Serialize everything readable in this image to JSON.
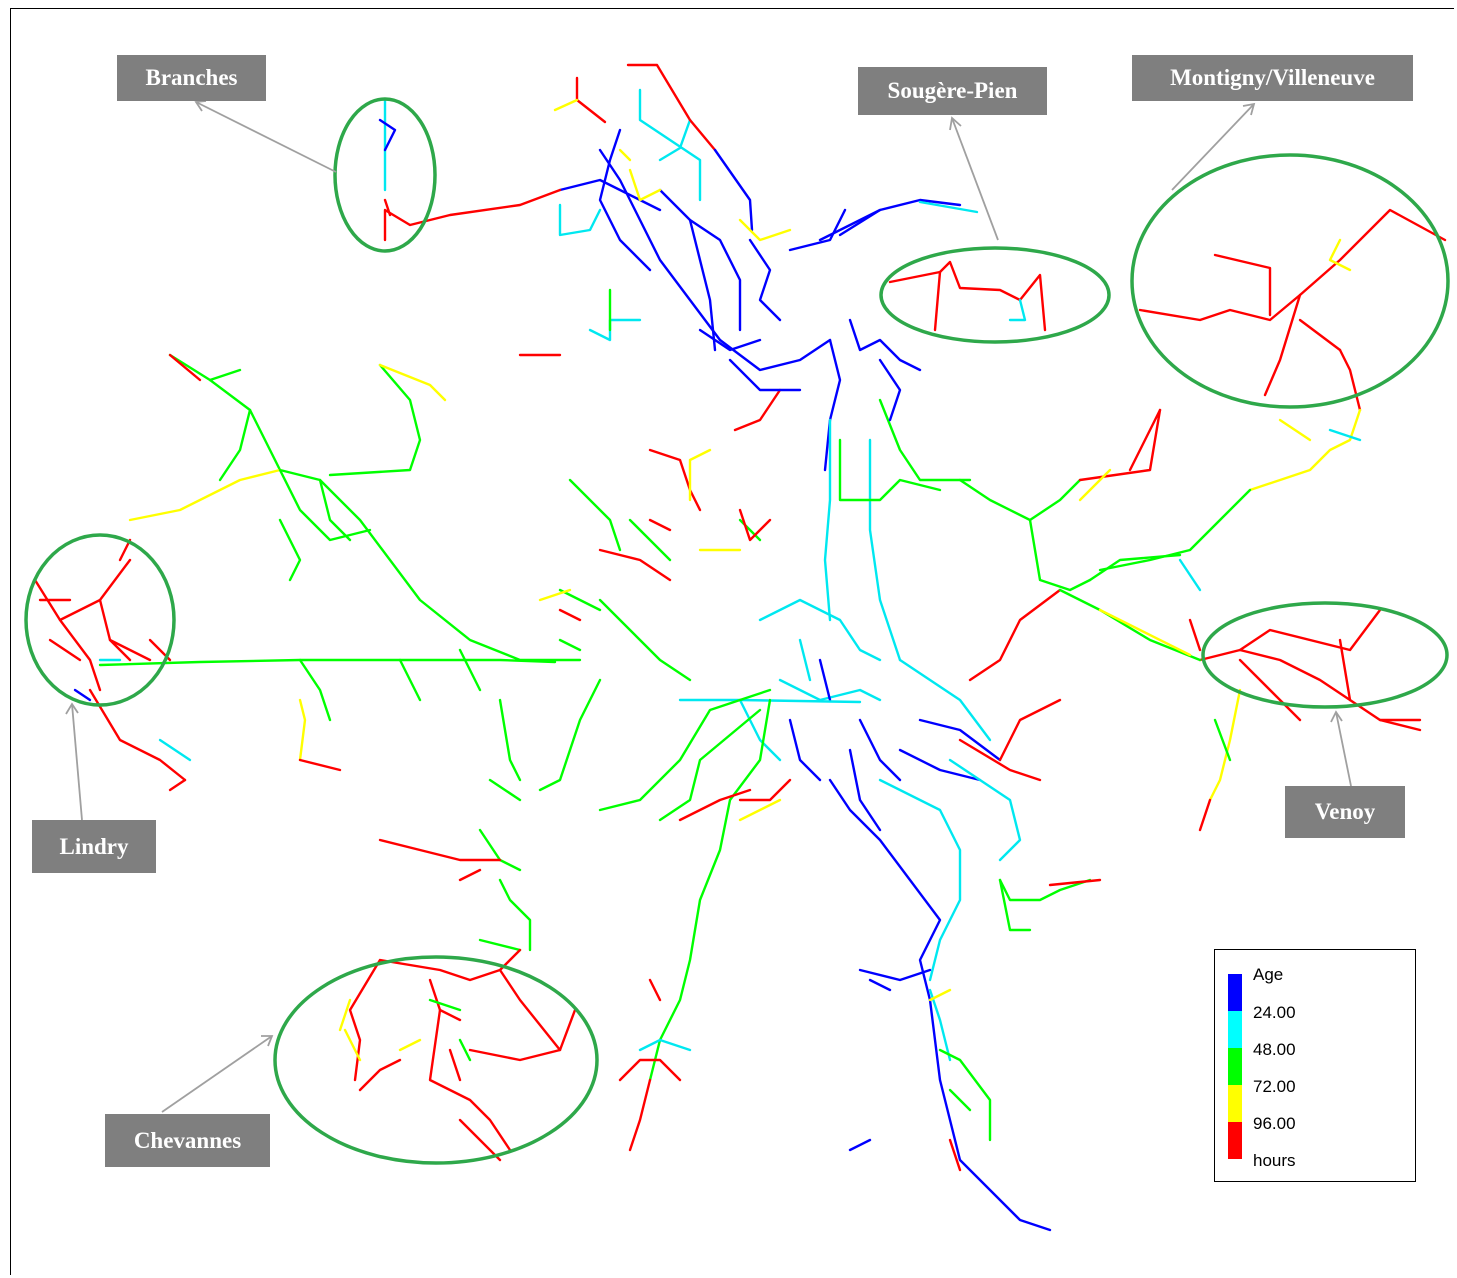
{
  "callouts": {
    "branches": "Branches",
    "sougere": "Sougère-Pien",
    "montigny": "Montigny/Villeneuve",
    "lindry": "Lindry",
    "venoy": "Venoy",
    "chevannes": "Chevannes"
  },
  "legend": {
    "title": "Age",
    "ticks": [
      "24.00",
      "48.00",
      "72.00",
      "96.00"
    ],
    "unit": "hours",
    "colors": [
      "#0000ff",
      "#00ffff",
      "#00ff00",
      "#ffff00",
      "#ff0000"
    ]
  },
  "styles": {
    "ellipse_color": "#2ea84a",
    "arrow_color": "#a0a0a0",
    "label_bg": "#7f7f7f"
  }
}
